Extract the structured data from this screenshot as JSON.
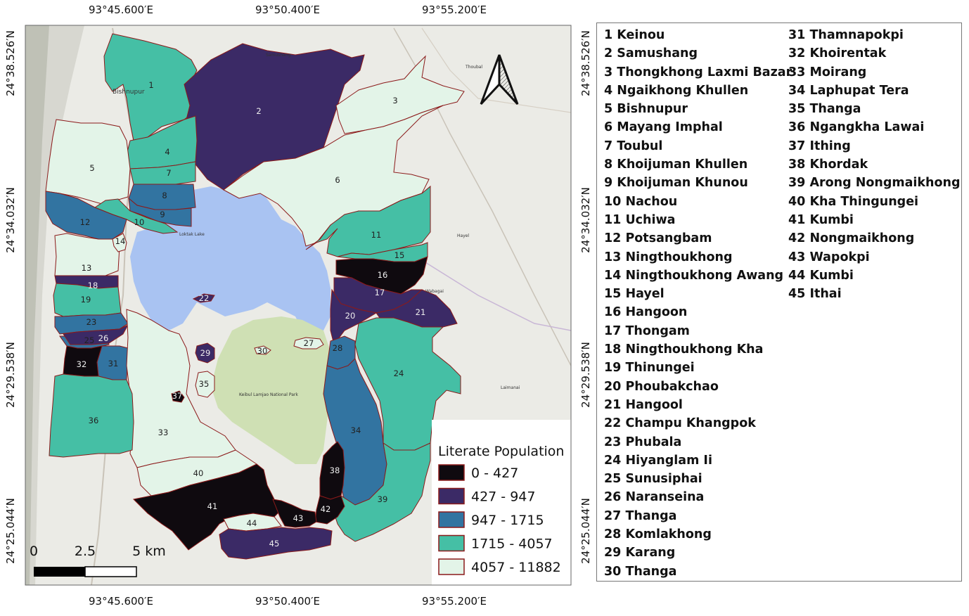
{
  "map": {
    "top_coords": [
      "93°45.600′E",
      "93°50.400′E",
      "93°55.200′E"
    ],
    "bottom_coords": [
      "93°45.600′E",
      "93°50.400′E",
      "93°55.200′E"
    ],
    "left_coords": [
      "24°38.526′N",
      "24°34.032′N",
      "24°29.538′N",
      "24°25.044′N"
    ],
    "right_coords": [
      "24°38.526′N",
      "24°34.032′N",
      "24°29.538′N",
      "24°25.044′N"
    ],
    "base_labels": [
      "Bishnupur",
      "Samushang",
      "Loktak Lake",
      "Keibul Lamjao National Park",
      "Hayel",
      "Wabagai",
      "Laimanai",
      "Thoubal"
    ],
    "scale_labels": [
      "0",
      "2.5",
      "5 km"
    ]
  },
  "legend": {
    "title": "Literate Population",
    "classes": [
      {
        "label": "0 - 427",
        "color": "#0f0a0f"
      },
      {
        "label": "427 - 947",
        "color": "#3b2a66"
      },
      {
        "label": "947 - 1715",
        "color": "#3274a1"
      },
      {
        "label": "1715 - 4057",
        "color": "#45bfa5"
      },
      {
        "label": "4057 - 11882",
        "color": "#e3f4e8"
      }
    ]
  },
  "colors": {
    "border": "#8b1a1a",
    "lake": "#a9c3f2",
    "park": "#cfe0b4",
    "basemap": "#ebebe6"
  },
  "villages": [
    {
      "num": "1",
      "name": "1 Keinou",
      "cls": 3
    },
    {
      "num": "2",
      "name": "2 Samushang",
      "cls": 1
    },
    {
      "num": "3",
      "name": "3 Thongkhong Laxmi Bazar",
      "cls": 4
    },
    {
      "num": "4",
      "name": "4 Ngaikhong Khullen",
      "cls": 3
    },
    {
      "num": "5",
      "name": "5 Bishnupur",
      "cls": 4
    },
    {
      "num": "6",
      "name": "6 Mayang Imphal",
      "cls": 4
    },
    {
      "num": "7",
      "name": "7 Toubul",
      "cls": 3
    },
    {
      "num": "8",
      "name": "8 Khoijuman Khullen",
      "cls": 2
    },
    {
      "num": "9",
      "name": "9 Khoijuman Khunou",
      "cls": 2
    },
    {
      "num": "10",
      "name": "10 Nachou",
      "cls": 3
    },
    {
      "num": "11",
      "name": "11 Uchiwa",
      "cls": 3
    },
    {
      "num": "12",
      "name": "12 Potsangbam",
      "cls": 2
    },
    {
      "num": "13",
      "name": "13 Ningthoukhong",
      "cls": 4
    },
    {
      "num": "14",
      "name": "14 Ningthoukhong Awang",
      "cls": 4
    },
    {
      "num": "15",
      "name": "15 Hayel",
      "cls": 3
    },
    {
      "num": "16",
      "name": "16 Hangoon",
      "cls": 0
    },
    {
      "num": "17",
      "name": "17 Thongam",
      "cls": 1
    },
    {
      "num": "18",
      "name": "18 Ningthoukhong Kha",
      "cls": 1
    },
    {
      "num": "19",
      "name": "19 Thinungei",
      "cls": 3
    },
    {
      "num": "20",
      "name": "20 Phoubakchao",
      "cls": 1
    },
    {
      "num": "21",
      "name": "21 Hangool",
      "cls": 1
    },
    {
      "num": "22",
      "name": "22 Champu Khangpok",
      "cls": 1
    },
    {
      "num": "23",
      "name": "23 Phubala",
      "cls": 2
    },
    {
      "num": "24",
      "name": "24 Hiyanglam Ii",
      "cls": 3
    },
    {
      "num": "25",
      "name": "25 Sunusiphai",
      "cls": 2
    },
    {
      "num": "26",
      "name": "26 Naranseina",
      "cls": 1
    },
    {
      "num": "27",
      "name": "27 Thanga",
      "cls": 4
    },
    {
      "num": "28",
      "name": "28 Komlakhong",
      "cls": 2
    },
    {
      "num": "29",
      "name": "29 Karang",
      "cls": 1
    },
    {
      "num": "30",
      "name": "30 Thanga",
      "cls": 4
    },
    {
      "num": "31",
      "name": "31 Thamnapokpi",
      "cls": 2
    },
    {
      "num": "32",
      "name": "32 Khoirentak",
      "cls": 0
    },
    {
      "num": "33",
      "name": "33 Moirang",
      "cls": 4
    },
    {
      "num": "34",
      "name": "34 Laphupat Tera",
      "cls": 2
    },
    {
      "num": "35",
      "name": "35 Thanga",
      "cls": 4
    },
    {
      "num": "36",
      "name": "36 Ngangkha Lawai",
      "cls": 3
    },
    {
      "num": "37",
      "name": "37 Ithing",
      "cls": 0
    },
    {
      "num": "38",
      "name": "38 Khordak",
      "cls": 0
    },
    {
      "num": "39",
      "name": "39 Arong Nongmaikhong",
      "cls": 3
    },
    {
      "num": "40",
      "name": "40 Kha Thingungei",
      "cls": 4
    },
    {
      "num": "41",
      "name": "41 Kumbi",
      "cls": 0
    },
    {
      "num": "42",
      "name": "42 Nongmaikhong",
      "cls": 0
    },
    {
      "num": "43",
      "name": "43 Wapokpi",
      "cls": 0
    },
    {
      "num": "44",
      "name": "44 Kumbi",
      "cls": 4
    },
    {
      "num": "45",
      "name": "45 Ithai",
      "cls": 1
    }
  ]
}
